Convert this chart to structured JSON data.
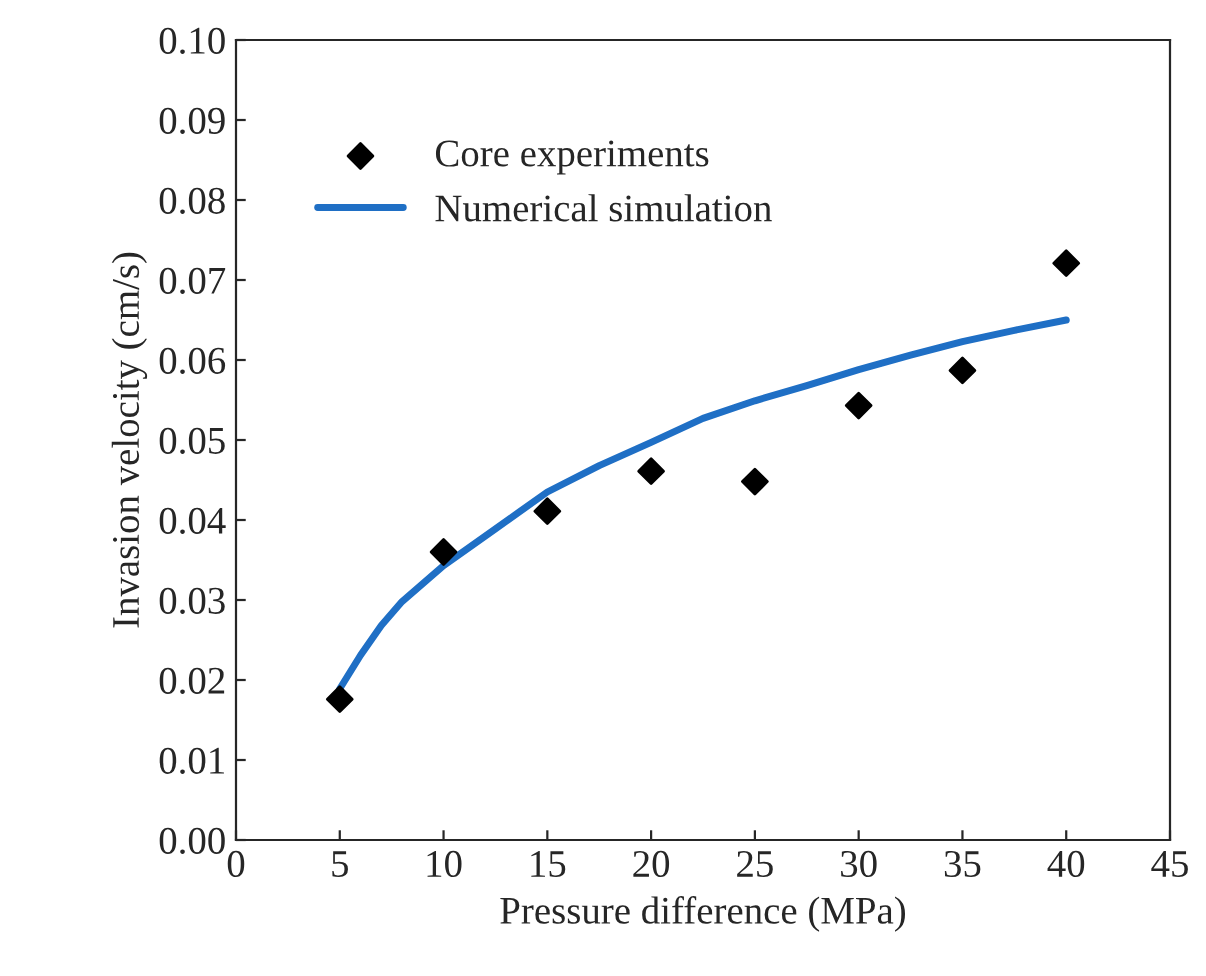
{
  "chart_data": {
    "type": "scatter",
    "xlabel": "Pressure difference (MPa)",
    "ylabel": "Invasion velocity (cm/s)",
    "xlim": [
      0,
      45
    ],
    "xticks": [
      0,
      5,
      10,
      15,
      20,
      25,
      30,
      35,
      40,
      45
    ],
    "ylim": [
      0,
      0.1
    ],
    "yticks": [
      {
        "value": 0,
        "label": "0.00"
      },
      {
        "value": 0.01,
        "label": "0.01"
      },
      {
        "value": 0.02,
        "label": "0.02"
      },
      {
        "value": 0.03,
        "label": "0.03"
      },
      {
        "value": 0.04,
        "label": "0.04"
      },
      {
        "value": 0.05,
        "label": "0.05"
      },
      {
        "value": 0.06,
        "label": "0.06"
      },
      {
        "value": 0.07,
        "label": "0.07"
      },
      {
        "value": 0.08,
        "label": "0.08"
      },
      {
        "value": 0.09,
        "label": "0.09"
      },
      {
        "value": 0.1,
        "label": "0.10"
      }
    ],
    "grid": false,
    "legend": "top left",
    "series": [
      {
        "name": "Core experiments",
        "type": "scatter",
        "marker": "diamond",
        "color": "#000000",
        "x": [
          5,
          10,
          15,
          20,
          25,
          30,
          35,
          40
        ],
        "values": [
          0.0176,
          0.036,
          0.0411,
          0.0461,
          0.0448,
          0.0543,
          0.0587,
          0.0721
        ]
      },
      {
        "name": "Numerical simulation",
        "type": "line",
        "marker": "none",
        "color": "#1f6fc5",
        "x": [
          5,
          6,
          7,
          8,
          10,
          12.5,
          15,
          17.5,
          20,
          22.5,
          25,
          27.5,
          30,
          32.5,
          35,
          37.5,
          40
        ],
        "values": [
          0.0189,
          0.0231,
          0.0268,
          0.0298,
          0.0343,
          0.0389,
          0.0435,
          0.0468,
          0.0497,
          0.0527,
          0.0549,
          0.0568,
          0.0588,
          0.0606,
          0.0623,
          0.0637,
          0.065
        ]
      }
    ]
  }
}
